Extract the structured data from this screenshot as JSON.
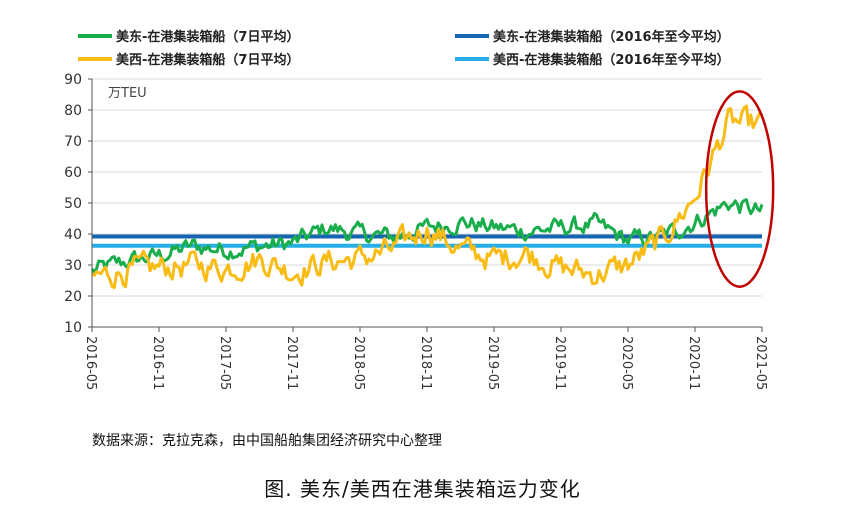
{
  "chart_data": {
    "type": "line",
    "title": "图. 美东/美西在港集装箱运力变化",
    "ylabel": "万TEU",
    "xlabel": "",
    "ylim": [
      10,
      90
    ],
    "yticks": [
      10,
      20,
      30,
      40,
      50,
      60,
      70,
      80,
      90
    ],
    "xlim": [
      "2016-05",
      "2021-05"
    ],
    "xticks": [
      "2016-05",
      "2016-11",
      "2017-05",
      "2017-11",
      "2018-05",
      "2018-11",
      "2019-05",
      "2019-11",
      "2020-05",
      "2020-11",
      "2021-05"
    ],
    "grid": "horizontal",
    "legend_position": "top",
    "series": [
      {
        "name": "美东-在港集装箱船（7日平均）",
        "color": "#1aad4b",
        "kind": "line",
        "x": [
          "2016-05",
          "2016-08",
          "2016-11",
          "2017-02",
          "2017-05",
          "2017-08",
          "2017-11",
          "2018-02",
          "2018-05",
          "2018-08",
          "2018-11",
          "2019-02",
          "2019-05",
          "2019-08",
          "2019-11",
          "2020-02",
          "2020-05",
          "2020-08",
          "2020-11",
          "2021-02",
          "2021-05"
        ],
        "values": [
          28,
          31,
          33,
          36,
          35,
          36,
          37,
          42,
          40,
          39,
          42,
          44,
          42,
          41,
          42,
          43,
          38,
          39,
          44,
          50,
          47
        ]
      },
      {
        "name": "美西-在港集装箱船（7日平均）",
        "color": "#f9bc15",
        "kind": "line",
        "x": [
          "2016-05",
          "2016-08",
          "2016-11",
          "2017-02",
          "2017-05",
          "2017-08",
          "2017-11",
          "2018-02",
          "2018-05",
          "2018-08",
          "2018-11",
          "2019-02",
          "2019-05",
          "2019-08",
          "2019-11",
          "2020-02",
          "2020-05",
          "2020-08",
          "2020-11",
          "2021-02",
          "2021-05"
        ],
        "values": [
          26,
          28,
          29,
          30,
          29,
          32,
          28,
          31,
          32,
          35,
          42,
          35,
          32,
          34,
          29,
          27,
          30,
          38,
          52,
          76,
          75
        ]
      },
      {
        "name": "美东-在港集装箱船（2016年至今平均）",
        "color": "#1565b3",
        "kind": "hline",
        "value": 39.2
      },
      {
        "name": "美西-在港集装箱船（2016年至今平均）",
        "color": "#26aee6",
        "kind": "hline",
        "value": 36.2
      }
    ],
    "annotations": [
      {
        "type": "ellipse",
        "color": "#c00000",
        "label": "",
        "x_range": [
          "2020-12",
          "2021-06"
        ],
        "y_range": [
          23,
          86
        ]
      }
    ]
  },
  "legend": [
    {
      "label": "美东-在港集装箱船（7日平均）",
      "color": "#1aad4b"
    },
    {
      "label": "美东-在港集装箱船（2016年至今平均）",
      "color": "#1565b3"
    },
    {
      "label": "美西-在港集装箱船（7日平均）",
      "color": "#f9bc15"
    },
    {
      "label": "美西-在港集装箱船（2016年至今平均）",
      "color": "#26aee6"
    }
  ],
  "source": "数据来源：克拉克森，由中国船舶集团经济研究中心整理",
  "caption": "图. 美东/美西在港集装箱运力变化"
}
